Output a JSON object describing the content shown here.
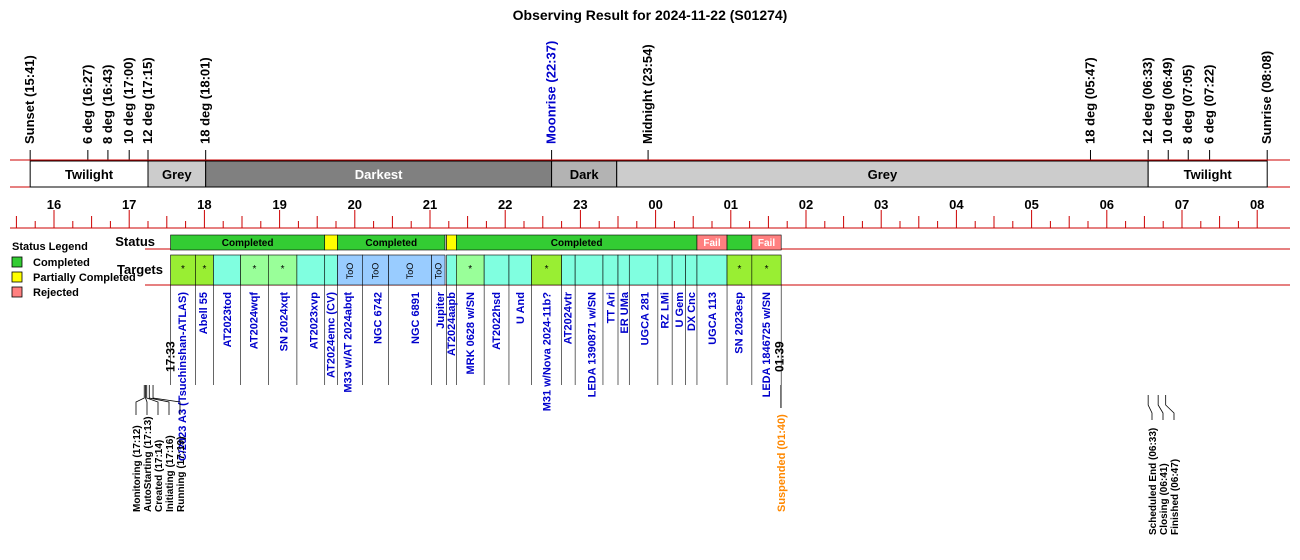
{
  "chart_data": {
    "type": "timeline",
    "title": "Observing Result for 2024-11-22 (S01274)",
    "time_unit": "hour",
    "time_range": [
      15.45,
      32.2
    ],
    "colors": {
      "completed": "#33cc33",
      "partial": "#ffff00",
      "rejected": "#ff8080",
      "target_light": "#99ff99",
      "target_lime": "#99ee33",
      "target_cyan": "#80ffe0",
      "target_too": "#99ccff",
      "band_twilight": "#ffffff",
      "band_grey": "#cccccc",
      "band_darkest": "#808080",
      "band_dark": "#b3b3b3",
      "axis_red": "#cc0000",
      "label_blue": "#0000cc",
      "label_orange": "#ff8800"
    },
    "sky_events": [
      {
        "label": "Sunset (15:41)",
        "t": 15.683,
        "color": "black"
      },
      {
        "label": "6 deg (16:27)",
        "t": 16.45,
        "color": "black"
      },
      {
        "label": "8 deg (16:43)",
        "t": 16.717,
        "color": "black"
      },
      {
        "label": "10 deg (17:00)",
        "t": 17.0,
        "color": "black"
      },
      {
        "label": "12 deg (17:15)",
        "t": 17.25,
        "color": "black"
      },
      {
        "label": "18 deg (18:01)",
        "t": 18.017,
        "color": "black"
      },
      {
        "label": "Moonrise (22:37)",
        "t": 22.617,
        "color": "blue"
      },
      {
        "label": "Midnight (23:54)",
        "t": 23.9,
        "color": "black"
      },
      {
        "label": "18 deg (05:47)",
        "t": 29.783,
        "color": "black"
      },
      {
        "label": "12 deg (06:33)",
        "t": 30.55,
        "color": "black"
      },
      {
        "label": "10 deg (06:49)",
        "t": 30.817,
        "color": "black"
      },
      {
        "label": "8 deg (07:05)",
        "t": 31.083,
        "color": "black"
      },
      {
        "label": "6 deg (07:22)",
        "t": 31.367,
        "color": "black"
      },
      {
        "label": "Sunrise (08:08)",
        "t": 32.133,
        "color": "black"
      }
    ],
    "sky_bands": [
      {
        "label": "Twilight",
        "start": 15.683,
        "end": 17.25,
        "fill": "band_twilight",
        "text": "black"
      },
      {
        "label": "Grey",
        "start": 17.25,
        "end": 18.017,
        "fill": "band_grey",
        "text": "black"
      },
      {
        "label": "Darkest",
        "start": 18.017,
        "end": 22.617,
        "fill": "band_darkest",
        "text": "white"
      },
      {
        "label": "Dark",
        "start": 22.617,
        "end": 23.483,
        "fill": "band_dark",
        "text": "black"
      },
      {
        "label": "Grey",
        "start": 23.483,
        "end": 30.55,
        "fill": "band_grey",
        "text": "black"
      },
      {
        "label": "Twilight",
        "start": 30.55,
        "end": 32.133,
        "fill": "band_twilight",
        "text": "black"
      }
    ],
    "hour_ticks": [
      "16",
      "17",
      "18",
      "19",
      "20",
      "21",
      "22",
      "23",
      "00",
      "01",
      "02",
      "03",
      "04",
      "05",
      "06",
      "07",
      "08"
    ],
    "hour_tick_values": [
      16,
      17,
      18,
      19,
      20,
      21,
      22,
      23,
      24,
      25,
      26,
      27,
      28,
      29,
      30,
      31,
      32
    ],
    "row_labels": {
      "status": "Status",
      "targets": "Targets"
    },
    "legend": {
      "title": "Status Legend",
      "items": [
        {
          "label": "Completed",
          "color": "completed"
        },
        {
          "label": "Partially Completed",
          "color": "partial"
        },
        {
          "label": "Rejected",
          "color": "rejected"
        }
      ]
    },
    "status_segments": [
      {
        "label": "Completed",
        "start": 17.55,
        "end": 19.6,
        "state": "completed"
      },
      {
        "label": "",
        "start": 19.6,
        "end": 19.77,
        "state": "partial"
      },
      {
        "label": "Completed",
        "start": 19.77,
        "end": 21.2,
        "state": "completed"
      },
      {
        "label": "",
        "start": 21.2,
        "end": 21.22,
        "state": "blank"
      },
      {
        "label": "",
        "start": 21.22,
        "end": 21.35,
        "state": "partial"
      },
      {
        "label": "Completed",
        "start": 21.35,
        "end": 24.55,
        "state": "completed"
      },
      {
        "label": "Fail",
        "start": 24.55,
        "end": 24.95,
        "state": "rejected"
      },
      {
        "label": "",
        "start": 24.95,
        "end": 25.28,
        "state": "completed"
      },
      {
        "label": "Fail",
        "start": 25.28,
        "end": 25.67,
        "state": "rejected"
      }
    ],
    "targets": [
      {
        "name": "C/2023 A3 (Tsuchinshan-ATLAS)",
        "start": 17.55,
        "end": 17.88,
        "fill": "target_lime",
        "mark": "*",
        "label_t": 17.7
      },
      {
        "name": "Abell 55",
        "start": 17.88,
        "end": 18.12,
        "fill": "target_lime",
        "mark": "*",
        "label_t": 17.98
      },
      {
        "name": "AT2023tod",
        "start": 18.12,
        "end": 18.48,
        "fill": "target_cyan",
        "mark": "",
        "label_t": 18.3
      },
      {
        "name": "AT2024wqf",
        "start": 18.48,
        "end": 18.85,
        "fill": "target_light",
        "mark": "*",
        "label_t": 18.65
      },
      {
        "name": "SN 2024xqt",
        "start": 18.85,
        "end": 19.23,
        "fill": "target_light",
        "mark": "*",
        "label_t": 19.05
      },
      {
        "name": "AT2023xvp",
        "start": 19.23,
        "end": 19.6,
        "fill": "target_cyan",
        "mark": "",
        "label_t": 19.45
      },
      {
        "name": "AT2024emc (CV)",
        "start": 19.6,
        "end": 19.77,
        "fill": "target_cyan",
        "mark": "",
        "label_t": 19.68
      },
      {
        "name": "M33 w/AT 2024abqt",
        "start": 19.77,
        "end": 20.1,
        "fill": "target_too",
        "mark": "ToO",
        "label_t": 19.9
      },
      {
        "name": "NGC 6742",
        "start": 20.1,
        "end": 20.45,
        "fill": "target_too",
        "mark": "ToO",
        "label_t": 20.3
      },
      {
        "name": "NGC 6891",
        "start": 20.45,
        "end": 21.02,
        "fill": "target_too",
        "mark": "ToO",
        "label_t": 20.8
      },
      {
        "name": "Jupiter",
        "start": 21.02,
        "end": 21.2,
        "fill": "target_too",
        "mark": "ToO",
        "label_t": 21.13
      },
      {
        "name": "AT2024aapb",
        "start": 21.22,
        "end": 21.35,
        "fill": "target_cyan",
        "mark": "",
        "label_t": 21.28
      },
      {
        "name": "MRK 0628 w/SN",
        "start": 21.35,
        "end": 21.72,
        "fill": "target_light",
        "mark": "*",
        "label_t": 21.53
      },
      {
        "name": "AT2022hsd",
        "start": 21.72,
        "end": 22.05,
        "fill": "target_cyan",
        "mark": "",
        "label_t": 21.88
      },
      {
        "name": "U And",
        "start": 22.05,
        "end": 22.35,
        "fill": "target_cyan",
        "mark": "",
        "label_t": 22.2
      },
      {
        "name": "M31 w/Nova 2024-11b?",
        "start": 22.35,
        "end": 22.75,
        "fill": "target_lime",
        "mark": "*",
        "label_t": 22.55
      },
      {
        "name": "AT2024vtr",
        "start": 22.75,
        "end": 22.93,
        "fill": "target_cyan",
        "mark": "",
        "label_t": 22.83
      },
      {
        "name": "LEDA 1390871 w/SN",
        "start": 22.93,
        "end": 23.3,
        "fill": "target_cyan",
        "mark": "",
        "label_t": 23.15
      },
      {
        "name": "TT Ari",
        "start": 23.3,
        "end": 23.5,
        "fill": "target_cyan",
        "mark": "",
        "label_t": 23.4
      },
      {
        "name": "ER UMa",
        "start": 23.5,
        "end": 23.65,
        "fill": "target_cyan",
        "mark": "",
        "label_t": 23.58
      },
      {
        "name": "UGCA 281",
        "start": 23.65,
        "end": 24.03,
        "fill": "target_cyan",
        "mark": "",
        "label_t": 23.85
      },
      {
        "name": "RZ LMi",
        "start": 24.03,
        "end": 24.22,
        "fill": "target_cyan",
        "mark": "",
        "label_t": 24.12
      },
      {
        "name": "U Gem",
        "start": 24.22,
        "end": 24.4,
        "fill": "target_cyan",
        "mark": "",
        "label_t": 24.31
      },
      {
        "name": "DX Cnc",
        "start": 24.4,
        "end": 24.55,
        "fill": "target_cyan",
        "mark": "",
        "label_t": 24.47
      },
      {
        "name": "UGCA 113",
        "start": 24.55,
        "end": 24.95,
        "fill": "target_cyan",
        "mark": "",
        "label_t": 24.75
      },
      {
        "name": "SN 2023esp",
        "start": 24.95,
        "end": 25.28,
        "fill": "target_lime",
        "mark": "*",
        "label_t": 25.1
      },
      {
        "name": "LEDA 1846725 w/SN",
        "start": 25.28,
        "end": 25.67,
        "fill": "target_lime",
        "mark": "*",
        "label_t": 25.47
      }
    ],
    "time_marks": [
      {
        "label": "17:33",
        "t": 17.55
      },
      {
        "label": "01:39",
        "t": 25.65
      }
    ],
    "events_start": [
      {
        "label": "Monitoring (17:12)",
        "t": 17.2
      },
      {
        "label": "AutoStarting (17:13)",
        "t": 17.217
      },
      {
        "label": "Created (17:14)",
        "t": 17.233
      },
      {
        "label": "Initiating (17:16)",
        "t": 17.267
      },
      {
        "label": "Running (17:19)",
        "t": 17.317
      }
    ],
    "suspended": {
      "label": "Suspended (01:40)",
      "t": 25.667
    },
    "events_end": [
      {
        "label": "Scheduled End (06:33)",
        "t": 30.55
      },
      {
        "label": "Closing (06:41)",
        "t": 30.683
      },
      {
        "label": "Finished (06:47)",
        "t": 30.783
      }
    ]
  }
}
